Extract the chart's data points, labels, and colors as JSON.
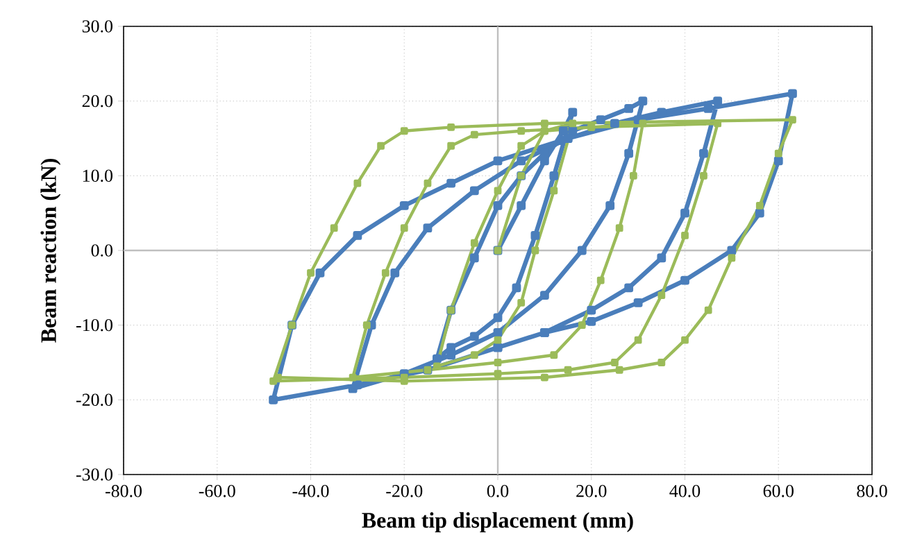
{
  "chart_data": {
    "type": "line",
    "xlabel": "Beam tip displacement (mm)",
    "ylabel": "Beam reaction (kN)",
    "xlim": [
      -80,
      80
    ],
    "ylim": [
      -30,
      30
    ],
    "xticks": [
      {
        "value": -80,
        "label": "-80.0"
      },
      {
        "value": -60,
        "label": "-60.0"
      },
      {
        "value": -40,
        "label": "-40.0"
      },
      {
        "value": -20,
        "label": "-20.0"
      },
      {
        "value": 0,
        "label": "0.0"
      },
      {
        "value": 20,
        "label": "20.0"
      },
      {
        "value": 40,
        "label": "40.0"
      },
      {
        "value": 60,
        "label": "60.0"
      },
      {
        "value": 80,
        "label": "80.0"
      }
    ],
    "yticks": [
      {
        "value": -30,
        "label": "-30.0"
      },
      {
        "value": -20,
        "label": "-20.0"
      },
      {
        "value": -10,
        "label": "-10.0"
      },
      {
        "value": 0,
        "label": "0.0"
      },
      {
        "value": 10,
        "label": "10.0"
      },
      {
        "value": 20,
        "label": "20.0"
      },
      {
        "value": 30,
        "label": "30.0"
      }
    ],
    "grid": true,
    "marker": "square",
    "line_style": "solid",
    "series": [
      {
        "color": "#4a7ebb",
        "x": [
          0,
          5,
          10,
          14,
          16,
          12,
          8,
          4,
          0,
          -5,
          -10,
          -13,
          -10,
          -5,
          0,
          5,
          10,
          16,
          22,
          28,
          31,
          28,
          24,
          18,
          10,
          0,
          -10,
          -20,
          -31,
          -27,
          -22,
          -15,
          -5,
          5,
          15,
          25,
          35,
          47,
          44,
          40,
          35,
          28,
          20,
          10,
          0,
          -15,
          -30,
          -48,
          -44,
          -38,
          -30,
          -20,
          -10,
          0,
          15,
          30,
          45,
          63,
          60,
          56,
          50,
          40,
          30,
          20,
          10,
          0
        ],
        "values": [
          0,
          6,
          12,
          16,
          18.5,
          10,
          2,
          -5,
          -9,
          -11.5,
          -13,
          -14.5,
          -8,
          -1,
          6,
          10,
          13,
          16,
          17.5,
          19,
          20,
          13,
          6,
          0,
          -6,
          -11,
          -14,
          -16.5,
          -18.5,
          -10,
          -3,
          3,
          8,
          12,
          15,
          17,
          18.5,
          20,
          13,
          5,
          -1,
          -5,
          -8,
          -11,
          -13,
          -16,
          -18,
          -20,
          -10,
          -3,
          2,
          6,
          9,
          12,
          15,
          17.5,
          19,
          21,
          12,
          5,
          0,
          -4,
          -7,
          -9.5,
          -11,
          -13
        ]
      },
      {
        "color": "#9bbb59",
        "x": [
          0,
          5,
          10,
          16,
          12,
          8,
          5,
          0,
          -5,
          -13,
          -10,
          -5,
          0,
          5,
          10,
          20,
          31,
          29,
          26,
          22,
          18,
          12,
          0,
          -15,
          -31,
          -28,
          -24,
          -20,
          -15,
          -10,
          -5,
          5,
          20,
          47,
          44,
          40,
          35,
          30,
          25,
          15,
          0,
          -20,
          -48,
          -44,
          -40,
          -35,
          -30,
          -25,
          -20,
          -10,
          10,
          63,
          60,
          56,
          50,
          45,
          40,
          35,
          26,
          10,
          -20,
          -47
        ],
        "values": [
          0,
          10,
          16,
          17,
          8,
          0,
          -7,
          -12,
          -14,
          -15.5,
          -8,
          1,
          8,
          14,
          16,
          16.5,
          17,
          10,
          3,
          -4,
          -10,
          -14,
          -15,
          -16,
          -17,
          -10,
          -3,
          3,
          9,
          14,
          15.5,
          16,
          16.5,
          17,
          10,
          2,
          -6,
          -12,
          -15,
          -16,
          -16.5,
          -17,
          -17.5,
          -10,
          -3,
          3,
          9,
          14,
          16,
          16.5,
          17,
          17.5,
          13,
          6,
          -1,
          -8,
          -12,
          -15,
          -16,
          -17,
          -17.5,
          -17
        ]
      }
    ]
  }
}
